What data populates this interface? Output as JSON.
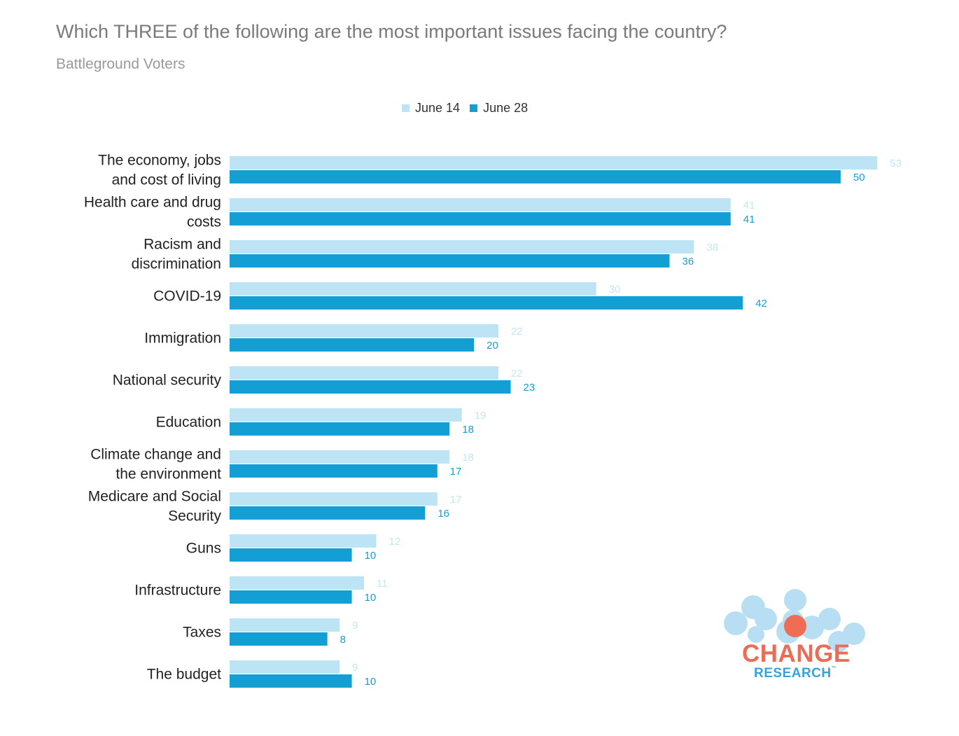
{
  "title": "Which THREE of the following are the most important issues facing the country?",
  "subtitle": "Battleground Voters",
  "logo": {
    "line1": "CHANGE",
    "line2": "RESEARCH",
    "tm": "™"
  },
  "colors": {
    "june14": "#bde4f4",
    "june28": "#149fd4",
    "june14_label": "#c5e6f3",
    "june28_label": "#1a9bd1"
  },
  "chart_data": {
    "type": "bar",
    "orientation": "horizontal",
    "title": "Which THREE of the following are the most important issues facing the country?",
    "subtitle": "Battleground Voters",
    "categories": [
      [
        "The economy, jobs",
        "and cost of living"
      ],
      [
        "Health care and drug",
        "costs"
      ],
      [
        "Racism and",
        "discrimination"
      ],
      [
        "COVID-19"
      ],
      [
        "Immigration"
      ],
      [
        "National security"
      ],
      [
        "Education"
      ],
      [
        "Climate change and",
        "the environment"
      ],
      [
        "Medicare and Social",
        "Security"
      ],
      [
        "Guns"
      ],
      [
        "Infrastructure"
      ],
      [
        "Taxes"
      ],
      [
        "The budget"
      ]
    ],
    "series": [
      {
        "name": "June 14",
        "values": [
          53,
          41,
          38,
          30,
          22,
          22,
          19,
          18,
          17,
          12,
          11,
          9,
          9
        ]
      },
      {
        "name": "June 28",
        "values": [
          50,
          41,
          36,
          42,
          20,
          23,
          18,
          17,
          16,
          10,
          10,
          8,
          10
        ]
      }
    ],
    "legend": "top-center",
    "grid": false,
    "xlim": [
      0,
      53.5
    ]
  }
}
